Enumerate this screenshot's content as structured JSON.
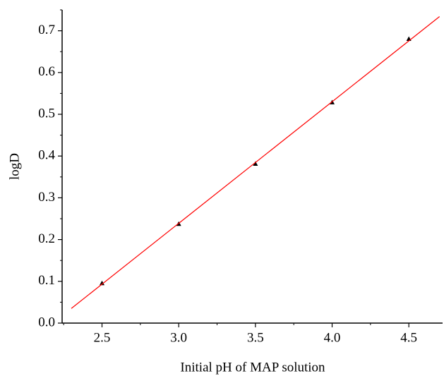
{
  "chart_data": {
    "type": "scatter",
    "x_label": "Initial pH of MAP solution",
    "y_label": "logD",
    "series": [
      {
        "type": "scatter",
        "color": "#000000",
        "x": [
          2.5,
          3.0,
          3.5,
          4.0,
          4.5
        ],
        "values": [
          0.095,
          0.237,
          0.381,
          0.528,
          0.68
        ]
      },
      {
        "type": "line",
        "color": "#ff0000",
        "x": [
          2.3,
          4.7
        ],
        "values": [
          0.035,
          0.734
        ]
      }
    ],
    "xlim": [
      2.24,
      4.72
    ],
    "ylim": [
      0,
      0.75
    ],
    "xticks": [
      2.5,
      {
        "value": 3,
        "label": "3.0"
      },
      3.5,
      {
        "value": 4,
        "label": "4.0"
      },
      4.5
    ],
    "yticks": [
      {
        "value": 0,
        "label": "0.0"
      },
      0.1,
      0.2,
      0.3,
      0.4,
      0.5,
      0.6,
      0.7
    ],
    "xminorticks": [
      2.25,
      2.75,
      3.25,
      3.75,
      4.25,
      4.75
    ],
    "yminorticks": [
      0.05,
      0.15,
      0.25,
      0.35,
      0.45,
      0.55,
      0.65,
      0.75
    ]
  }
}
